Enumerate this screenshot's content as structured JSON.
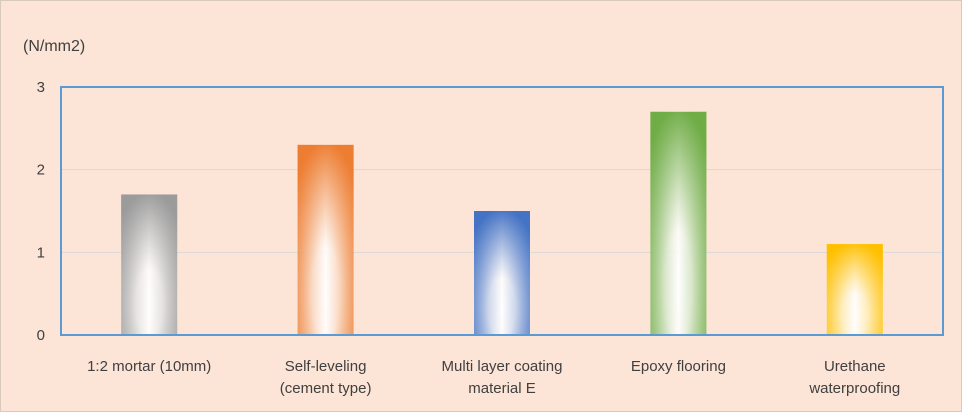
{
  "chart_data": {
    "type": "bar",
    "title": "",
    "unit_label": "(N/mm2)",
    "xlabel": "",
    "ylabel": "",
    "ylim": [
      0,
      3
    ],
    "yticks": [
      "0",
      "1",
      "2",
      "3"
    ],
    "grid": true,
    "legend": "none",
    "categories": [
      [
        "1:2 mortar (10mm)"
      ],
      [
        "Self-leveling",
        "(cement type)"
      ],
      [
        "Multi layer coating",
        "material E"
      ],
      [
        "Epoxy flooring"
      ],
      [
        "Urethane",
        "waterproofing"
      ]
    ],
    "values": [
      1.7,
      2.3,
      1.5,
      2.7,
      1.1
    ],
    "bar_colors": [
      "#9b9b9b",
      "#ed7d31",
      "#4472c4",
      "#70ad47",
      "#ffc000"
    ],
    "plot_border_color": "#5b9bd5",
    "background_color": "#fce4d6"
  }
}
